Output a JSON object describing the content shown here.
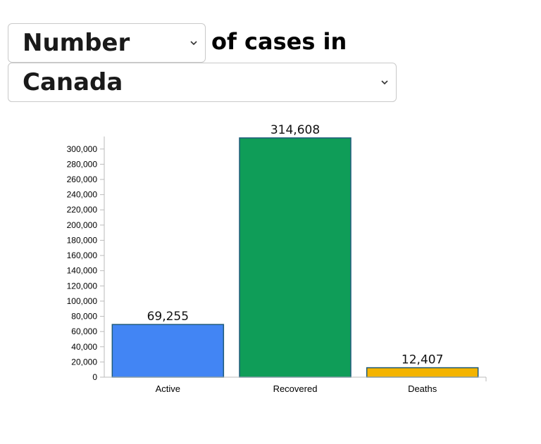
{
  "controls": {
    "metric_select": {
      "value": "Number"
    },
    "country_select": {
      "value": "Canada"
    },
    "label": "of cases in"
  },
  "chart_data": {
    "type": "bar",
    "title": "",
    "xlabel": "",
    "ylabel": "",
    "ylim": [
      0,
      314608
    ],
    "categories": [
      "Active",
      "Recovered",
      "Deaths"
    ],
    "values": [
      69255,
      314608,
      12407
    ],
    "data_labels": [
      "69,255",
      "314,608",
      "12,407"
    ],
    "colors": [
      "#4285f4",
      "#0f9d58",
      "#f4b400"
    ],
    "y_ticks": [
      0,
      20000,
      40000,
      60000,
      80000,
      100000,
      120000,
      140000,
      160000,
      180000,
      200000,
      220000,
      240000,
      260000,
      280000,
      300000
    ],
    "y_tick_labels": [
      "0",
      "20,000",
      "40,000",
      "60,000",
      "80,000",
      "100,000",
      "120,000",
      "140,000",
      "160,000",
      "180,000",
      "200,000",
      "220,000",
      "240,000",
      "260,000",
      "280,000",
      "300,000"
    ],
    "grid": false,
    "legend": "none"
  }
}
